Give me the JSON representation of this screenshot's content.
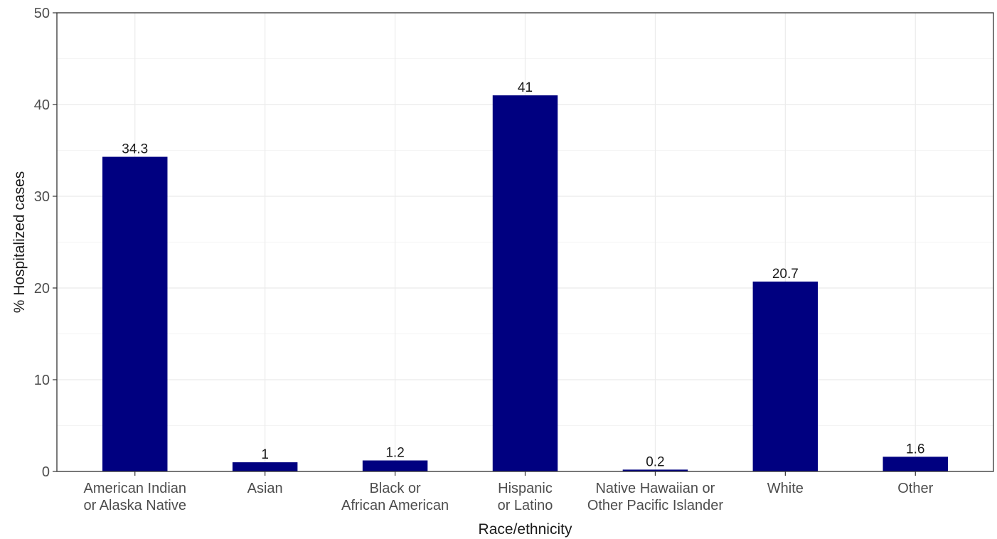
{
  "chart_data": {
    "type": "bar",
    "title": "",
    "xlabel": "Race/ethnicity",
    "ylabel": "% Hospitalized cases",
    "ylim": [
      0,
      50
    ],
    "yticks": [
      0,
      10,
      20,
      30,
      40,
      50
    ],
    "grid": true,
    "legend": "none",
    "categories": [
      [
        "American Indian",
        "or Alaska Native"
      ],
      [
        "Asian"
      ],
      [
        "Black or",
        "African American"
      ],
      [
        "Hispanic",
        "or Latino"
      ],
      [
        "Native Hawaiian or",
        "Other Pacific Islander"
      ],
      [
        "White"
      ],
      [
        "Other"
      ]
    ],
    "values": [
      34.3,
      1,
      1.2,
      41,
      0.2,
      20.7,
      1.6
    ],
    "data_labels": [
      "34.3",
      "1",
      "1.2",
      "41",
      "0.2",
      "20.7",
      "1.6"
    ],
    "colors": {
      "bar": "#000080",
      "grid_major": "#ebebeb",
      "grid_minor": "#f4f4f4",
      "panel_border": "#333333",
      "tick_text": "#4d4d4d",
      "title_text": "#1a1a1a"
    }
  }
}
